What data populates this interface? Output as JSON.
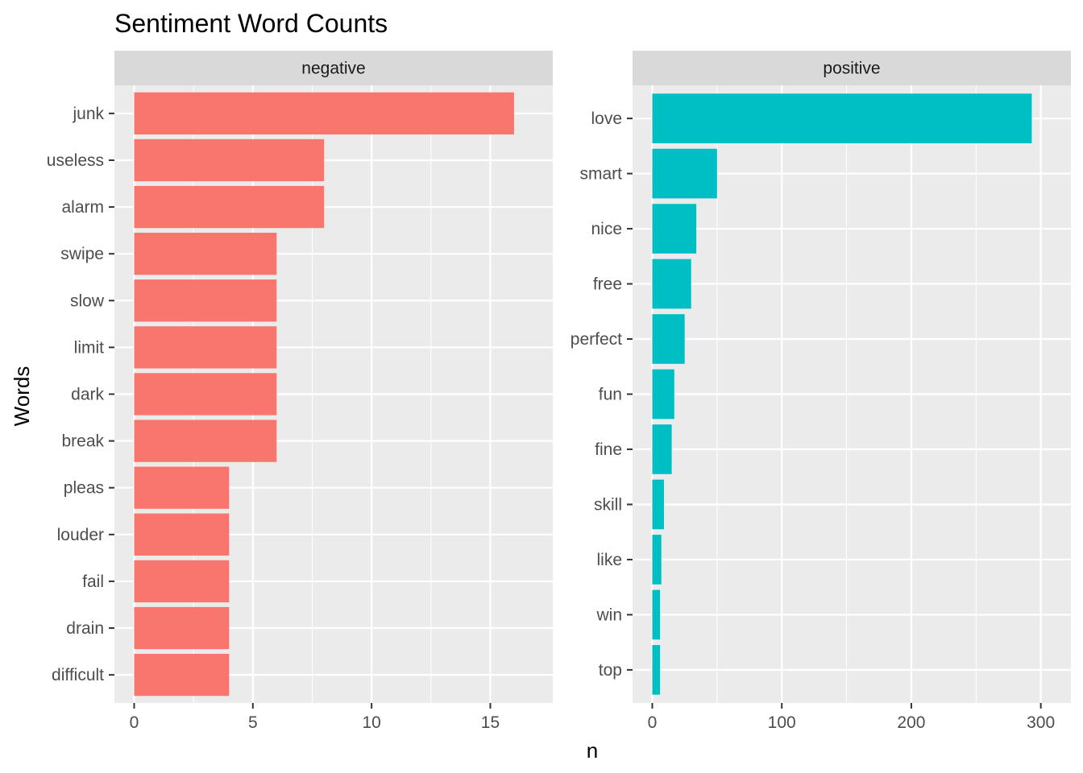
{
  "chart_data": {
    "type": "bar",
    "orientation": "horizontal",
    "title": "Sentiment Word Counts",
    "xlabel": "n",
    "ylabel": "Words",
    "grid": true,
    "facets": [
      {
        "name": "negative",
        "color": "#F8766D",
        "xlim": [
          0,
          16.8
        ],
        "xticks": [
          0,
          5,
          10,
          15
        ],
        "categories": [
          "junk",
          "useless",
          "alarm",
          "swipe",
          "slow",
          "limit",
          "dark",
          "break",
          "pleas",
          "louder",
          "fail",
          "drain",
          "difficult"
        ],
        "values": [
          16,
          8,
          8,
          6,
          6,
          6,
          6,
          6,
          4,
          4,
          4,
          4,
          4
        ]
      },
      {
        "name": "positive",
        "color": "#00BFC4",
        "xlim": [
          0,
          308
        ],
        "xticks": [
          0,
          100,
          200,
          300
        ],
        "categories": [
          "love",
          "smart",
          "nice",
          "free",
          "perfect",
          "fun",
          "fine",
          "skill",
          "like",
          "win",
          "top"
        ],
        "values": [
          293,
          50,
          34,
          30,
          25,
          17,
          15,
          9,
          7,
          6,
          6
        ]
      }
    ]
  }
}
